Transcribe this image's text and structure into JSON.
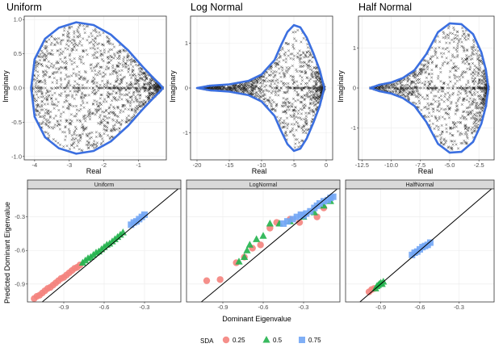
{
  "chart_data": [
    {
      "type": "scatter",
      "title": "Uniform",
      "xlabel": "Real",
      "ylabel": "Imaginary",
      "xlim": [
        -4.3,
        -0.2
      ],
      "ylim": [
        -1.05,
        1.05
      ],
      "xticks": [
        -4,
        -3,
        -2,
        -1
      ],
      "yticks": [
        -1.0,
        -0.5,
        0.0,
        0.5,
        1.0
      ],
      "ytick_labels": [
        "-1.0",
        "-0.5",
        "0.0",
        "0.5",
        "1.0"
      ],
      "boundary": {
        "color": "#3b6fe0",
        "upper_x": [
          -4.1,
          -4.0,
          -3.7,
          -3.3,
          -2.8,
          -2.3,
          -1.8,
          -1.3,
          -0.9,
          -0.6,
          -0.4,
          -0.3
        ],
        "upper_y": [
          0.0,
          0.42,
          0.72,
          0.88,
          0.96,
          0.92,
          0.78,
          0.55,
          0.32,
          0.16,
          0.06,
          0.0
        ]
      },
      "points": {
        "marker": "x",
        "color": "#000000",
        "x_range": [
          -4.1,
          -0.3
        ],
        "description_count": 1400
      }
    },
    {
      "type": "scatter",
      "title": "Log Normal",
      "xlabel": "Real",
      "ylabel": "Imaginary",
      "xlim": [
        -21,
        1
      ],
      "ylim": [
        -1.6,
        1.6
      ],
      "xticks": [
        -20,
        -15,
        -10,
        -5,
        0
      ],
      "yticks": [
        -1,
        0,
        1
      ],
      "ytick_labels": [
        "-1",
        "0",
        "1"
      ],
      "boundary": {
        "color": "#3b6fe0",
        "upper_x": [
          -20,
          -18,
          -15,
          -12,
          -10,
          -8,
          -7,
          -6,
          -5,
          -4,
          -3,
          -2,
          -1,
          -0.3
        ],
        "upper_y": [
          0.0,
          0.05,
          0.08,
          0.16,
          0.3,
          0.62,
          0.95,
          1.25,
          1.4,
          1.35,
          1.12,
          0.78,
          0.4,
          0.0
        ]
      },
      "points": {
        "marker": "x",
        "color": "#000000",
        "x_range": [
          -19,
          -0.3
        ],
        "description_count": 1200
      }
    },
    {
      "type": "scatter",
      "title": "Half Normal",
      "xlabel": "Real",
      "ylabel": "Imaginary",
      "xlim": [
        -12.8,
        -1.2
      ],
      "ylim": [
        -1.8,
        1.8
      ],
      "xticks": [
        -12.5,
        -10.0,
        -7.5,
        -5.0,
        -2.5
      ],
      "xtick_labels": [
        "-12.5",
        "-10.0",
        "-7.5",
        "-5.0",
        "-2.5"
      ],
      "yticks": [
        -1,
        0,
        1
      ],
      "ytick_labels": [
        "-1",
        "0",
        "1"
      ],
      "boundary": {
        "color": "#3b6fe0",
        "upper_x": [
          -11.8,
          -11.0,
          -10.0,
          -9.0,
          -8.0,
          -7.0,
          -6.0,
          -5.0,
          -4.0,
          -3.0,
          -2.3,
          -1.9,
          -1.7
        ],
        "upper_y": [
          0.0,
          0.08,
          0.14,
          0.25,
          0.45,
          0.85,
          1.4,
          1.62,
          1.6,
          1.35,
          0.9,
          0.45,
          0.0
        ]
      },
      "points": {
        "marker": "x",
        "color": "#000000",
        "x_range": [
          -11.8,
          -1.7
        ],
        "description_count": 1200
      }
    }
  ],
  "facet_chart": {
    "type": "scatter",
    "xlabel": "Dominant Eigenvalue",
    "ylabel": "Predicted Dominant Eigenvalue",
    "xlim": [
      -1.17,
      -0.03
    ],
    "ylim": [
      -1.06,
      -0.05
    ],
    "xticks": [
      -0.9,
      -0.6,
      -0.3
    ],
    "xtick_labels": [
      "-0.9",
      "-0.6",
      "-0.3"
    ],
    "yticks": [
      -0.9,
      -0.6,
      -0.3
    ],
    "ytick_labels": [
      "-0.9",
      "-0.6",
      "-0.3"
    ],
    "reference_line": "y = x",
    "legend": {
      "title": "SDA",
      "position": "bottom",
      "entries": [
        {
          "label": "0.25",
          "shape": "circle",
          "color": "#f4837d"
        },
        {
          "label": "0.5",
          "shape": "triangle",
          "color": "#22b24c"
        },
        {
          "label": "0.75",
          "shape": "square",
          "color": "#72a6f5"
        }
      ]
    },
    "panels": [
      {
        "strip": "Uniform",
        "series": [
          {
            "name": "0.25",
            "x": [
              -1.12,
              -1.1,
              -1.08,
              -1.06,
              -1.04,
              -1.02,
              -1.0,
              -0.98,
              -0.96,
              -0.94,
              -0.92,
              -0.9,
              -0.88,
              -0.86,
              -0.84,
              -0.82,
              -0.8,
              -0.78
            ],
            "y": [
              -1.03,
              -1.01,
              -1.0,
              -0.98,
              -0.96,
              -0.94,
              -0.93,
              -0.91,
              -0.89,
              -0.87,
              -0.85,
              -0.84,
              -0.82,
              -0.8,
              -0.78,
              -0.76,
              -0.75,
              -0.73
            ]
          },
          {
            "name": "0.5",
            "x": [
              -0.76,
              -0.74,
              -0.72,
              -0.7,
              -0.68,
              -0.66,
              -0.64,
              -0.62,
              -0.6,
              -0.58,
              -0.56,
              -0.54,
              -0.52,
              -0.5,
              -0.48,
              -0.46
            ],
            "y": [
              -0.71,
              -0.69,
              -0.67,
              -0.66,
              -0.64,
              -0.62,
              -0.61,
              -0.59,
              -0.57,
              -0.55,
              -0.54,
              -0.52,
              -0.5,
              -0.48,
              -0.46,
              -0.44
            ]
          },
          {
            "name": "0.75",
            "x": [
              -0.4,
              -0.38,
              -0.36,
              -0.34,
              -0.32,
              -0.3
            ],
            "y": [
              -0.37,
              -0.35,
              -0.34,
              -0.32,
              -0.3,
              -0.28
            ]
          }
        ]
      },
      {
        "strip": "LogNormal",
        "series": [
          {
            "name": "0.25",
            "x": [
              -1.02,
              -0.92,
              -0.8,
              -0.74,
              -0.68,
              -0.62,
              -0.55,
              -0.5,
              -0.4,
              -0.33,
              -0.2,
              -0.15
            ],
            "y": [
              -0.87,
              -0.86,
              -0.71,
              -0.66,
              -0.58,
              -0.55,
              -0.4,
              -0.35,
              -0.32,
              -0.35,
              -0.3,
              -0.22
            ]
          },
          {
            "name": "0.5",
            "x": [
              -0.78,
              -0.74,
              -0.72,
              -0.7,
              -0.65,
              -0.6,
              -0.55,
              -0.48,
              -0.4,
              -0.3,
              -0.22,
              -0.15,
              -0.1
            ],
            "y": [
              -0.7,
              -0.66,
              -0.6,
              -0.55,
              -0.5,
              -0.47,
              -0.36,
              -0.36,
              -0.34,
              -0.3,
              -0.26,
              -0.2,
              -0.16
            ]
          },
          {
            "name": "0.75",
            "x": [
              -0.45,
              -0.42,
              -0.38,
              -0.35,
              -0.32,
              -0.3,
              -0.28,
              -0.25,
              -0.22,
              -0.2,
              -0.18,
              -0.15,
              -0.12,
              -0.1,
              -0.08
            ],
            "y": [
              -0.36,
              -0.34,
              -0.32,
              -0.3,
              -0.28,
              -0.29,
              -0.27,
              -0.25,
              -0.22,
              -0.2,
              -0.18,
              -0.16,
              -0.15,
              -0.13,
              -0.12
            ]
          }
        ]
      },
      {
        "strip": "HalfNormal",
        "series": [
          {
            "name": "0.25",
            "x": [
              -0.99,
              -0.97,
              -0.95
            ],
            "y": [
              -0.97,
              -0.95,
              -0.94
            ]
          },
          {
            "name": "0.5",
            "x": [
              -0.94,
              -0.93,
              -0.92,
              -0.91,
              -0.9,
              -0.89,
              -0.88
            ],
            "y": [
              -0.94,
              -0.92,
              -0.91,
              -0.9,
              -0.89,
              -0.9,
              -0.88
            ]
          },
          {
            "name": "0.75",
            "x": [
              -0.66,
              -0.64,
              -0.62,
              -0.6,
              -0.58,
              -0.56,
              -0.54,
              -0.52
            ],
            "y": [
              -0.64,
              -0.62,
              -0.61,
              -0.59,
              -0.57,
              -0.56,
              -0.55,
              -0.53
            ]
          }
        ]
      }
    ]
  }
}
